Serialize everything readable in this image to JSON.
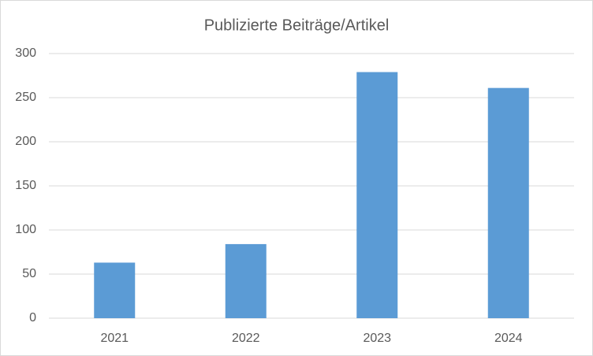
{
  "chart_data": {
    "type": "bar",
    "title": "Publizierte Beiträge/Artikel",
    "categories": [
      "2021",
      "2022",
      "2023",
      "2024"
    ],
    "values": [
      63,
      84,
      279,
      261
    ],
    "color": "#5b9bd5",
    "ylim": [
      0,
      300
    ],
    "yticks": [
      0,
      50,
      100,
      150,
      200,
      250,
      300
    ],
    "grid": true
  }
}
